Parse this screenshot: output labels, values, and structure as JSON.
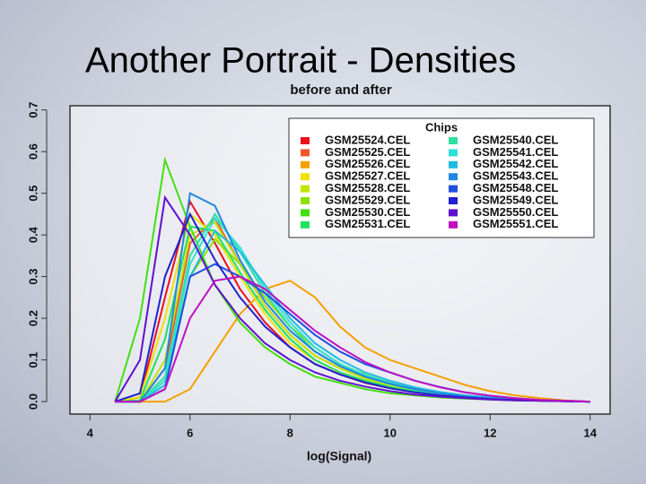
{
  "slide_title": "Another Portrait - Densities",
  "chart_data": {
    "type": "line",
    "title": "before and after",
    "x_label": "log(Signal)",
    "x": [
      4.5,
      5,
      5.5,
      6,
      6.5,
      7,
      7.5,
      8,
      8.5,
      9,
      9.5,
      10,
      10.5,
      11,
      11.5,
      12,
      12.5,
      13,
      13.5,
      14
    ],
    "xlim": [
      3.6,
      14.4
    ],
    "xticks": [
      4,
      6,
      8,
      10,
      12,
      14
    ],
    "ylim": [
      -0.03,
      0.71
    ],
    "yticks": [
      {
        "value": 0,
        "label": "0.0"
      },
      0.1,
      0.2,
      0.3,
      0.4,
      0.5,
      0.6,
      0.7
    ],
    "legend_title": "Chips",
    "series": [
      {
        "name": "GSM25524.CEL",
        "color": "#e8101c",
        "values": [
          0,
          0.01,
          0.25,
          0.48,
          0.38,
          0.27,
          0.19,
          0.13,
          0.09,
          0.065,
          0.045,
          0.032,
          0.022,
          0.015,
          0.01,
          0.007,
          0.004,
          0.002,
          0.001,
          0
        ]
      },
      {
        "name": "GSM25525.CEL",
        "color": "#f0582a",
        "values": [
          0,
          0,
          0.08,
          0.38,
          0.44,
          0.33,
          0.23,
          0.16,
          0.11,
          0.08,
          0.056,
          0.04,
          0.028,
          0.02,
          0.013,
          0.009,
          0.005,
          0.003,
          0.001,
          0
        ]
      },
      {
        "name": "GSM25526.CEL",
        "color": "#f5a000",
        "values": [
          0,
          0,
          0,
          0.03,
          0.12,
          0.21,
          0.27,
          0.29,
          0.25,
          0.18,
          0.13,
          0.1,
          0.08,
          0.06,
          0.04,
          0.025,
          0.015,
          0.008,
          0.003,
          0
        ]
      },
      {
        "name": "GSM25527.CEL",
        "color": "#f0e000",
        "values": [
          0,
          0.01,
          0.2,
          0.45,
          0.4,
          0.3,
          0.21,
          0.14,
          0.1,
          0.07,
          0.05,
          0.035,
          0.024,
          0.016,
          0.011,
          0.007,
          0.004,
          0.002,
          0.001,
          0
        ]
      },
      {
        "name": "GSM25528.CEL",
        "color": "#c4e400",
        "values": [
          0,
          0,
          0.1,
          0.4,
          0.43,
          0.33,
          0.23,
          0.16,
          0.11,
          0.08,
          0.055,
          0.04,
          0.027,
          0.018,
          0.012,
          0.008,
          0.005,
          0.003,
          0.001,
          0
        ]
      },
      {
        "name": "GSM25529.CEL",
        "color": "#8ee000",
        "values": [
          0,
          0,
          0.05,
          0.3,
          0.39,
          0.33,
          0.25,
          0.18,
          0.13,
          0.09,
          0.065,
          0.045,
          0.03,
          0.02,
          0.014,
          0.009,
          0.005,
          0.003,
          0.001,
          0
        ]
      },
      {
        "name": "GSM25530.CEL",
        "color": "#40e010",
        "values": [
          0,
          0.2,
          0.58,
          0.42,
          0.28,
          0.19,
          0.13,
          0.09,
          0.06,
          0.045,
          0.03,
          0.02,
          0.015,
          0.01,
          0.007,
          0.005,
          0.003,
          0.002,
          0.001,
          0
        ]
      },
      {
        "name": "GSM25531.CEL",
        "color": "#20e060",
        "values": [
          0,
          0.003,
          0.15,
          0.42,
          0.41,
          0.31,
          0.22,
          0.15,
          0.1,
          0.07,
          0.05,
          0.035,
          0.024,
          0.016,
          0.011,
          0.007,
          0.004,
          0.002,
          0.001,
          0
        ]
      },
      {
        "name": "GSM25540.CEL",
        "color": "#30e0a0",
        "values": [
          0,
          0,
          0.06,
          0.35,
          0.45,
          0.36,
          0.26,
          0.18,
          0.12,
          0.085,
          0.06,
          0.042,
          0.028,
          0.019,
          0.013,
          0.008,
          0.005,
          0.003,
          0.001,
          0
        ]
      },
      {
        "name": "GSM25541.CEL",
        "color": "#30e0d8",
        "values": [
          0,
          0,
          0.05,
          0.33,
          0.44,
          0.37,
          0.27,
          0.19,
          0.13,
          0.09,
          0.064,
          0.045,
          0.03,
          0.02,
          0.014,
          0.009,
          0.005,
          0.003,
          0.001,
          0
        ]
      },
      {
        "name": "GSM25542.CEL",
        "color": "#20bce0",
        "values": [
          0,
          0,
          0.04,
          0.3,
          0.41,
          0.36,
          0.28,
          0.2,
          0.14,
          0.1,
          0.07,
          0.05,
          0.034,
          0.023,
          0.015,
          0.01,
          0.006,
          0.003,
          0.001,
          0
        ]
      },
      {
        "name": "GSM25543.CEL",
        "color": "#2088e0",
        "values": [
          0,
          0,
          0.08,
          0.5,
          0.47,
          0.34,
          0.24,
          0.17,
          0.12,
          0.085,
          0.06,
          0.043,
          0.03,
          0.02,
          0.013,
          0.008,
          0.005,
          0.003,
          0.001,
          0
        ]
      },
      {
        "name": "GSM25548.CEL",
        "color": "#2050e0",
        "values": [
          0,
          0,
          0.03,
          0.3,
          0.33,
          0.3,
          0.26,
          0.21,
          0.16,
          0.12,
          0.09,
          0.07,
          0.05,
          0.035,
          0.022,
          0.014,
          0.008,
          0.004,
          0.002,
          0
        ]
      },
      {
        "name": "GSM25549.CEL",
        "color": "#2020d0",
        "values": [
          0,
          0.02,
          0.3,
          0.45,
          0.34,
          0.25,
          0.18,
          0.13,
          0.09,
          0.065,
          0.046,
          0.032,
          0.022,
          0.015,
          0.01,
          0.006,
          0.004,
          0.002,
          0.001,
          0
        ]
      },
      {
        "name": "GSM25550.CEL",
        "color": "#6010d0",
        "values": [
          0,
          0.1,
          0.49,
          0.4,
          0.28,
          0.2,
          0.14,
          0.1,
          0.07,
          0.05,
          0.036,
          0.025,
          0.017,
          0.012,
          0.008,
          0.005,
          0.003,
          0.002,
          0.001,
          0
        ]
      },
      {
        "name": "GSM25551.CEL",
        "color": "#c010c0",
        "values": [
          0,
          0,
          0.03,
          0.2,
          0.29,
          0.3,
          0.27,
          0.22,
          0.17,
          0.13,
          0.095,
          0.07,
          0.05,
          0.034,
          0.022,
          0.014,
          0.008,
          0.004,
          0.002,
          0
        ]
      }
    ]
  }
}
